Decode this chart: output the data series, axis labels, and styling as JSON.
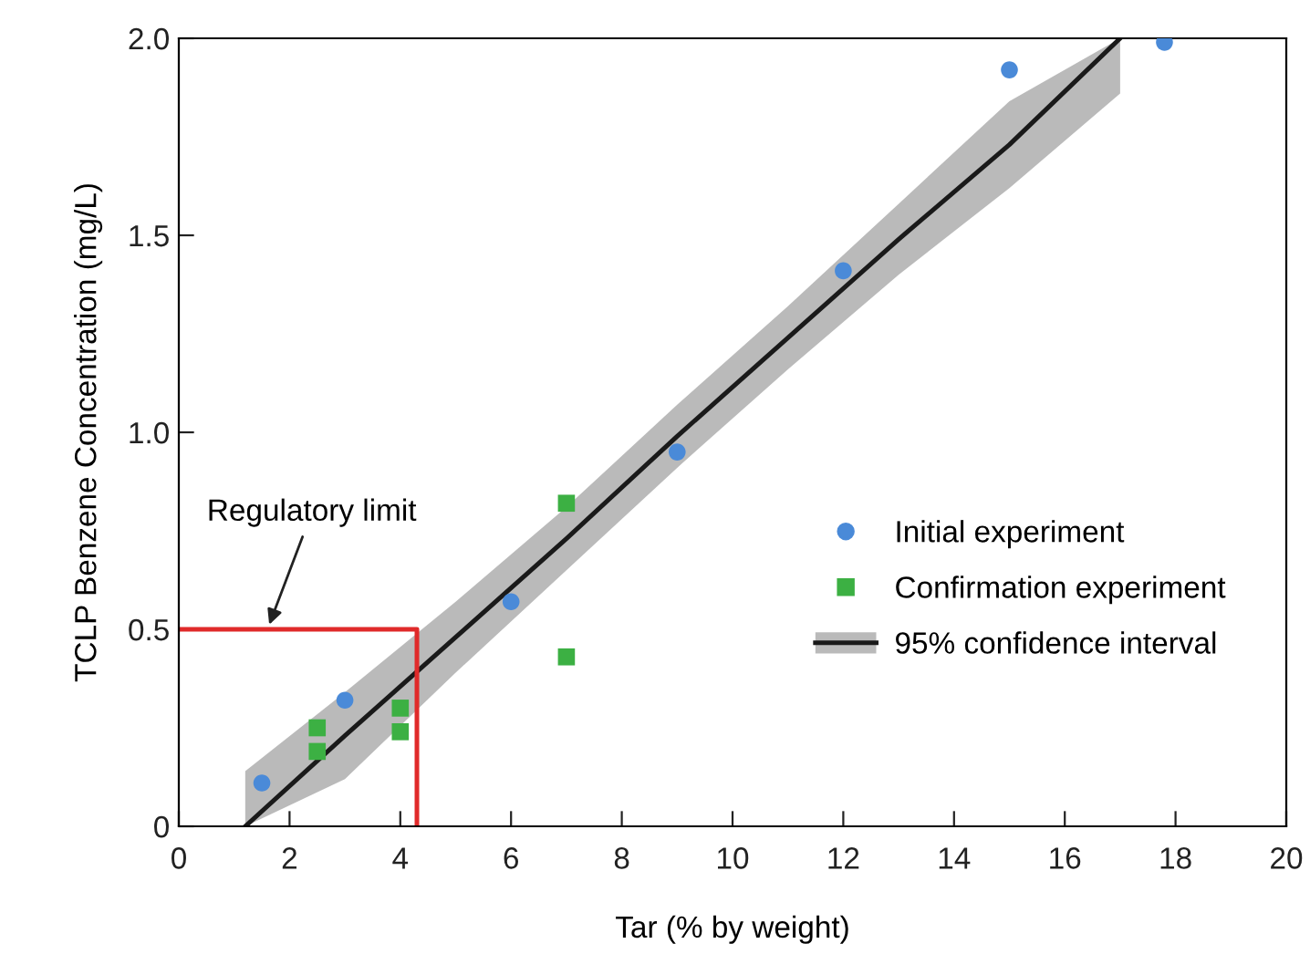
{
  "chart_data": {
    "type": "scatter",
    "xlabel": "Tar (% by weight)",
    "ylabel": "TCLP Benzene Concentration (mg/L)",
    "xlim": [
      0,
      20
    ],
    "ylim": [
      0,
      2.0
    ],
    "xticks": [
      0,
      2,
      4,
      6,
      8,
      10,
      12,
      14,
      16,
      18,
      20
    ],
    "yticks": [
      0,
      {
        "value": 0.5,
        "label": "0.5"
      },
      {
        "value": 1.0,
        "label": "1.0"
      },
      {
        "value": 1.5,
        "label": "1.5"
      },
      {
        "value": 2.0,
        "label": "2.0"
      }
    ],
    "grid": false,
    "legend": "right",
    "series": [
      {
        "name": "95% confidence interval",
        "type": "line",
        "color": "#1a1a1a",
        "x": [
          1.2,
          3,
          5,
          7,
          9,
          11,
          13,
          15,
          17.0
        ],
        "values": [
          0,
          0.23,
          0.48,
          0.73,
          0.99,
          1.24,
          1.49,
          1.73,
          2.0
        ],
        "lower": [
          0,
          0.12,
          0.39,
          0.65,
          0.91,
          1.16,
          1.4,
          1.62,
          1.86
        ],
        "upper": [
          0.14,
          0.34,
          0.57,
          0.81,
          1.07,
          1.32,
          1.58,
          1.84,
          2.0
        ]
      },
      {
        "type": "line",
        "color": "#e02a2a",
        "x": [
          0,
          4.3,
          4.3
        ],
        "values": [
          0.5,
          0.5,
          0
        ]
      },
      {
        "name": "Initial experiment",
        "type": "scatter",
        "marker": "circle",
        "color": "#4a8ad8",
        "x": [
          1.5,
          3,
          6,
          9,
          12,
          15,
          17.8
        ],
        "values": [
          0.11,
          0.32,
          0.57,
          0.95,
          1.41,
          1.92,
          1.99
        ]
      },
      {
        "name": "Confirmation experiment",
        "marker": "square",
        "color": "#3cb043",
        "x": [
          2.5,
          2.5,
          4,
          4,
          7,
          7
        ],
        "values": [
          0.25,
          0.19,
          0.3,
          0.24,
          0.82,
          0.43
        ]
      }
    ],
    "annotations": [
      {
        "text": "Regulatory limit",
        "x": 1.6,
        "y": 0.5
      }
    ]
  }
}
